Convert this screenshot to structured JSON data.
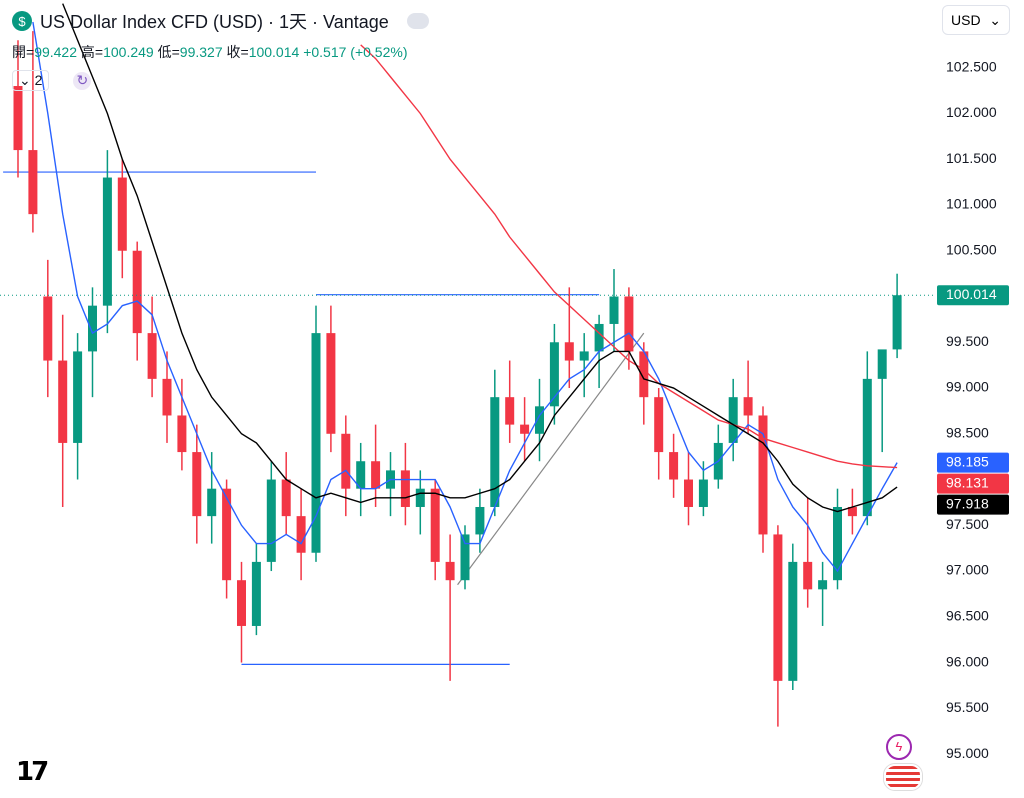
{
  "header": {
    "title": "US Dollar Index CFD (USD) · 1天 · Vantage",
    "ohlc": [
      {
        "label": "開=",
        "value": 99.422
      },
      {
        "label": "高=",
        "value": 100.249
      },
      {
        "label": "低=",
        "value": 99.327
      },
      {
        "label": "收=",
        "value": 100.014
      }
    ],
    "change": "+0.517",
    "change_pct": "(+0.52%)",
    "indicator_count": "2",
    "currency": "USD"
  },
  "chart_data": {
    "type": "candlestick",
    "up_color": "#089981",
    "down_color": "#f23645",
    "ylim": [
      94.52,
      103.24
    ],
    "yticks": [
      {
        "value": 102.5,
        "label": "102.500"
      },
      {
        "value": 102,
        "label": "102.000"
      },
      {
        "value": 101.5,
        "label": "101.500"
      },
      {
        "value": 101,
        "label": "101.000"
      },
      {
        "value": 100.5,
        "label": "100.500"
      },
      {
        "value": 99.5,
        "label": "99.500"
      },
      {
        "value": 99,
        "label": "99.000"
      },
      {
        "value": 98.5,
        "label": "98.500"
      },
      {
        "value": 97.5,
        "label": "97.500"
      },
      {
        "value": 97,
        "label": "97.000"
      },
      {
        "value": 96.5,
        "label": "96.500"
      },
      {
        "value": 96,
        "label": "96.000"
      },
      {
        "value": 95.5,
        "label": "95.500"
      },
      {
        "value": 95,
        "label": "95.000"
      }
    ],
    "candles": [
      [
        102.3,
        102.8,
        101.3,
        101.6
      ],
      [
        101.6,
        102.9,
        100.7,
        100.9
      ],
      [
        100.0,
        100.4,
        98.9,
        99.3
      ],
      [
        99.3,
        99.8,
        97.7,
        98.4
      ],
      [
        98.4,
        99.6,
        98.0,
        99.4
      ],
      [
        99.4,
        100.1,
        98.9,
        99.9
      ],
      [
        99.9,
        101.6,
        99.6,
        101.3
      ],
      [
        101.3,
        101.5,
        100.2,
        100.5
      ],
      [
        100.5,
        100.6,
        99.3,
        99.6
      ],
      [
        99.6,
        100.0,
        98.9,
        99.1
      ],
      [
        99.1,
        99.4,
        98.4,
        98.7
      ],
      [
        98.7,
        99.1,
        98.1,
        98.3
      ],
      [
        98.3,
        98.6,
        97.3,
        97.6
      ],
      [
        97.6,
        98.3,
        97.3,
        97.9
      ],
      [
        97.9,
        98.0,
        96.7,
        96.9
      ],
      [
        96.9,
        97.1,
        96.0,
        96.4
      ],
      [
        96.4,
        97.3,
        96.3,
        97.1
      ],
      [
        97.1,
        98.2,
        97.0,
        98.0
      ],
      [
        98.0,
        98.3,
        97.4,
        97.6
      ],
      [
        97.6,
        97.9,
        96.9,
        97.2
      ],
      [
        97.2,
        99.9,
        97.1,
        99.6
      ],
      [
        99.6,
        99.9,
        98.3,
        98.5
      ],
      [
        98.5,
        98.7,
        97.6,
        97.9
      ],
      [
        97.9,
        98.4,
        97.6,
        98.2
      ],
      [
        98.2,
        98.6,
        97.7,
        97.9
      ],
      [
        97.9,
        98.3,
        97.6,
        98.1
      ],
      [
        98.1,
        98.4,
        97.5,
        97.7
      ],
      [
        97.7,
        98.1,
        97.4,
        97.9
      ],
      [
        97.9,
        98.0,
        96.9,
        97.1
      ],
      [
        97.1,
        97.4,
        95.8,
        96.9
      ],
      [
        96.9,
        97.5,
        96.8,
        97.4
      ],
      [
        97.4,
        97.9,
        97.2,
        97.7
      ],
      [
        97.7,
        99.2,
        97.6,
        98.9
      ],
      [
        98.9,
        99.3,
        98.4,
        98.6
      ],
      [
        98.6,
        98.9,
        98.2,
        98.5
      ],
      [
        98.5,
        99.1,
        98.2,
        98.8
      ],
      [
        98.8,
        99.7,
        98.6,
        99.5
      ],
      [
        99.5,
        100.1,
        99.0,
        99.3
      ],
      [
        99.3,
        99.6,
        98.9,
        99.4
      ],
      [
        99.4,
        99.8,
        99.0,
        99.7
      ],
      [
        99.7,
        100.3,
        99.4,
        100.0
      ],
      [
        100.0,
        100.1,
        99.2,
        99.4
      ],
      [
        99.4,
        99.5,
        98.6,
        98.9
      ],
      [
        98.9,
        99.0,
        98.0,
        98.3
      ],
      [
        98.3,
        98.5,
        97.8,
        98.0
      ],
      [
        98.0,
        98.3,
        97.5,
        97.7
      ],
      [
        97.7,
        98.2,
        97.6,
        98.0
      ],
      [
        98.0,
        98.6,
        97.9,
        98.4
      ],
      [
        98.4,
        99.1,
        98.2,
        98.9
      ],
      [
        98.9,
        99.3,
        98.5,
        98.7
      ],
      [
        98.7,
        98.8,
        97.2,
        97.4
      ],
      [
        97.4,
        97.5,
        95.3,
        95.8
      ],
      [
        95.8,
        97.3,
        95.7,
        97.1
      ],
      [
        97.1,
        97.8,
        96.6,
        96.8
      ],
      [
        96.8,
        97.1,
        96.4,
        96.9
      ],
      [
        96.9,
        97.9,
        96.8,
        97.7
      ],
      [
        97.7,
        97.9,
        97.4,
        97.6
      ],
      [
        97.6,
        99.4,
        97.5,
        99.1
      ],
      [
        99.1,
        99.4,
        98.3,
        99.422
      ],
      [
        99.422,
        100.249,
        99.327,
        100.014
      ]
    ],
    "lines": [
      {
        "color": "#2962ff",
        "values": [
          null,
          103.0,
          102.0,
          100.9,
          100.0,
          99.6,
          99.7,
          99.9,
          99.95,
          99.8,
          99.3,
          98.9,
          98.5,
          98.1,
          97.8,
          97.5,
          97.3,
          97.3,
          97.4,
          97.3,
          97.6,
          98.0,
          98.1,
          97.9,
          97.9,
          98.0,
          98.0,
          98.0,
          98.0,
          97.7,
          97.3,
          97.3,
          97.7,
          98.1,
          98.4,
          98.7,
          98.9,
          99.1,
          99.2,
          99.4,
          99.5,
          99.6,
          99.4,
          99.1,
          98.7,
          98.3,
          98.1,
          98.2,
          98.4,
          98.6,
          98.5,
          98.0,
          97.7,
          97.5,
          97.2,
          97.0,
          97.3,
          97.6,
          97.9,
          98.185
        ]
      },
      {
        "color": "#f23645",
        "values": [
          null,
          null,
          null,
          null,
          null,
          null,
          null,
          null,
          null,
          null,
          null,
          null,
          null,
          null,
          null,
          null,
          null,
          null,
          null,
          null,
          null,
          null,
          null,
          102.75,
          102.6,
          102.4,
          102.2,
          102.0,
          101.75,
          101.5,
          101.3,
          101.1,
          100.9,
          100.65,
          100.45,
          100.25,
          100.05,
          99.9,
          99.75,
          99.6,
          99.45,
          99.3,
          99.2,
          99.05,
          98.95,
          98.85,
          98.75,
          98.65,
          98.6,
          98.55,
          98.45,
          98.4,
          98.35,
          98.3,
          98.25,
          98.2,
          98.17,
          98.15,
          98.14,
          98.131
        ]
      },
      {
        "color": "#000000",
        "values": [
          null,
          null,
          null,
          103.2,
          102.8,
          102.4,
          102.0,
          101.5,
          101.1,
          100.6,
          100.1,
          99.6,
          99.2,
          98.9,
          98.7,
          98.5,
          98.4,
          98.2,
          98.0,
          97.9,
          97.8,
          97.85,
          97.8,
          97.75,
          97.8,
          97.8,
          97.8,
          97.85,
          97.85,
          97.8,
          97.8,
          97.85,
          97.9,
          98.0,
          98.2,
          98.4,
          98.7,
          98.9,
          99.1,
          99.3,
          99.4,
          99.4,
          99.1,
          99.05,
          99.0,
          98.9,
          98.8,
          98.7,
          98.6,
          98.5,
          98.4,
          98.2,
          97.95,
          97.8,
          97.7,
          97.65,
          97.7,
          97.75,
          97.8,
          97.918
        ]
      }
    ],
    "horizontal_lines": [
      {
        "y": 101.36,
        "x": [
          -1,
          20
        ]
      },
      {
        "y": 100.02,
        "x": [
          20,
          39
        ]
      },
      {
        "y": 95.98,
        "x": [
          15,
          33
        ]
      }
    ],
    "trend_lines": [
      {
        "x": [
          29.5,
          42
        ],
        "y": [
          96.85,
          99.6
        ]
      }
    ]
  }
}
